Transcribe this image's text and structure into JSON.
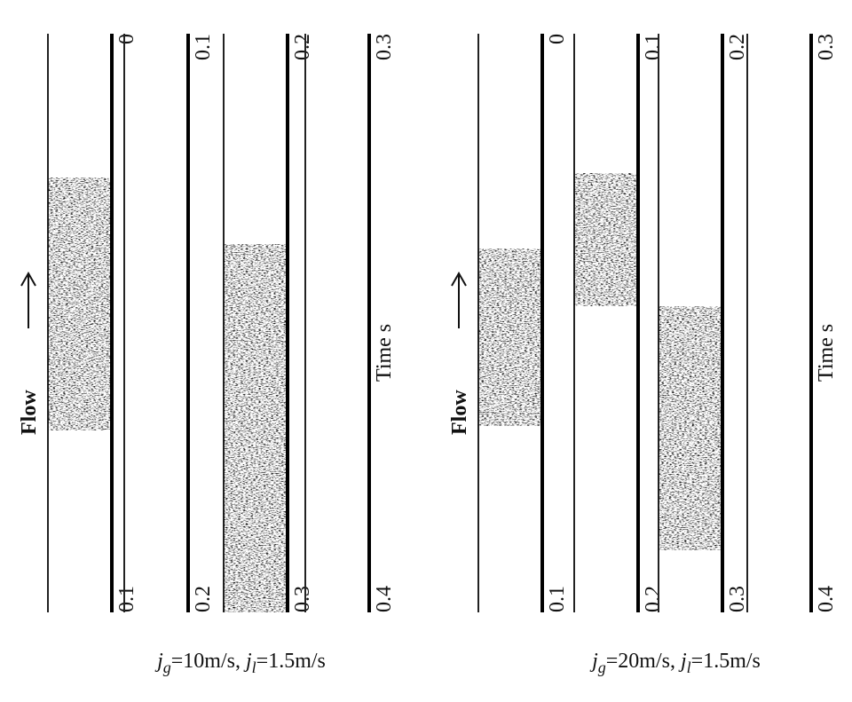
{
  "panels": [
    {
      "flow_label": "Flow",
      "time_label": "Time s",
      "strips": [
        {
          "start": "0",
          "end": "0.1"
        },
        {
          "start": "0.1",
          "end": "0.2"
        },
        {
          "start": "0.2",
          "end": "0.3"
        },
        {
          "start": "0.3",
          "end": "0.4"
        }
      ],
      "caption": [
        {
          "symbol": "j",
          "subscript": "g",
          "value": "=10m/s,"
        },
        {
          "symbol": "j",
          "subscript": "l",
          "value": "=1.5m/s"
        }
      ]
    },
    {
      "flow_label": "Flow",
      "time_label": "Time s",
      "strips": [
        {
          "start": "0",
          "end": "0.1"
        },
        {
          "start": "0.1",
          "end": "0.2"
        },
        {
          "start": "0.2",
          "end": "0.3"
        },
        {
          "start": "0.3",
          "end": "0.4"
        }
      ],
      "caption": [
        {
          "symbol": "j",
          "subscript": "g",
          "value": "=20m/s,"
        },
        {
          "symbol": "j",
          "subscript": "l",
          "value": "=1.5m/s"
        }
      ]
    }
  ]
}
